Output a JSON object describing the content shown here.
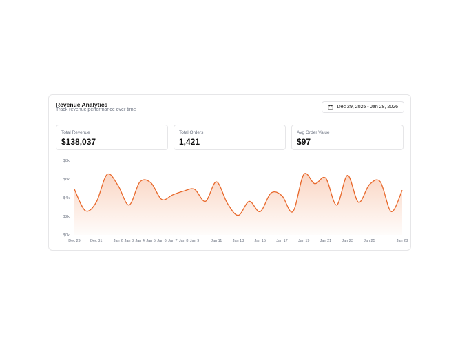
{
  "header": {
    "title": "Revenue Analytics",
    "subtitle": "Track revenue performance over time",
    "date_range": "Dec 29, 2025 - Jan 28, 2026"
  },
  "stats": [
    {
      "label": "Total Revenue",
      "value": "$138,037"
    },
    {
      "label": "Total Orders",
      "value": "1,421"
    },
    {
      "label": "Avg Order Value",
      "value": "$97"
    }
  ],
  "colors": {
    "line": "#e8692c",
    "fill": "#f4a27a"
  },
  "chart_data": {
    "type": "area",
    "title": "",
    "xlabel": "",
    "ylabel": "",
    "ylim": [
      0,
      8000
    ],
    "y_ticks": [
      {
        "value": 0,
        "label": "$0k"
      },
      {
        "value": 2000,
        "label": "$2k"
      },
      {
        "value": 4000,
        "label": "$4k"
      },
      {
        "value": 6000,
        "label": "$6k"
      },
      {
        "value": 8000,
        "label": "$8k"
      }
    ],
    "x": [
      "Dec 29",
      "Dec 30",
      "Dec 31",
      "Jan 1",
      "Jan 2",
      "Jan 3",
      "Jan 4",
      "Jan 5",
      "Jan 6",
      "Jan 7",
      "Jan 8",
      "Jan 9",
      "Jan 10",
      "Jan 11",
      "Jan 12",
      "Jan 13",
      "Jan 14",
      "Jan 15",
      "Jan 16",
      "Jan 17",
      "Jan 18",
      "Jan 19",
      "Jan 20",
      "Jan 21",
      "Jan 22",
      "Jan 23",
      "Jan 24",
      "Jan 25",
      "Jan 26",
      "Jan 27",
      "Jan 28"
    ],
    "x_tick_labels": [
      "Dec 29",
      "Dec 31",
      "Jan 2",
      "Jan 3",
      "Jan 4",
      "Jan 5",
      "Jan 6",
      "Jan 7",
      "Jan 8",
      "Jan 9",
      "Jan 11",
      "Jan 13",
      "Jan 15",
      "Jan 17",
      "Jan 19",
      "Jan 21",
      "Jan 23",
      "Jan 25",
      "Jan 28"
    ],
    "grid": false,
    "legend": "none",
    "series": [
      {
        "values": [
          4900,
          2600,
          3500,
          6500,
          5300,
          3200,
          5700,
          5600,
          3800,
          4300,
          4700,
          4900,
          3600,
          5700,
          3400,
          2100,
          3600,
          2500,
          4500,
          4200,
          2500,
          6500,
          5500,
          6100,
          3200,
          6400,
          3500,
          5400,
          5700,
          2500,
          4800
        ]
      }
    ]
  }
}
